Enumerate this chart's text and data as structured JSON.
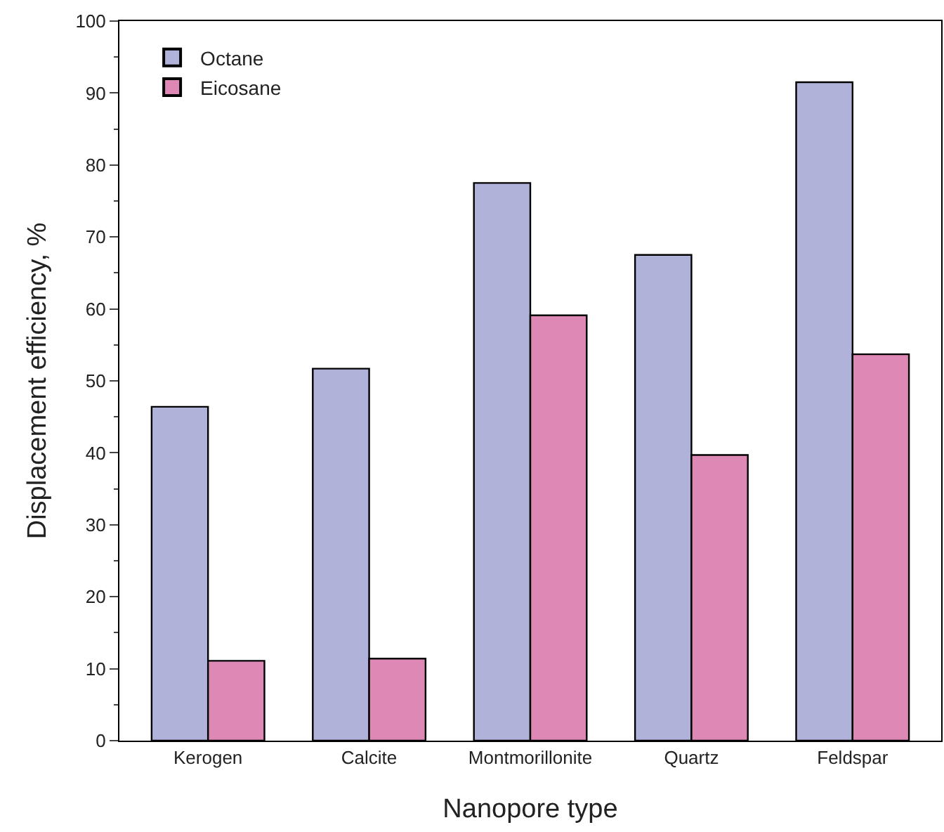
{
  "chart_data": {
    "type": "bar",
    "xlabel": "Nanopore type",
    "ylabel": "Displacement efficiency, %",
    "categories": [
      "Kerogen",
      "Calcite",
      "Montmorillonite",
      "Quartz",
      "Feldspar"
    ],
    "series": [
      {
        "name": "Octane",
        "color": "#b0b2da",
        "values": [
          46.4,
          51.7,
          77.5,
          67.5,
          91.5
        ]
      },
      {
        "name": "Eicosane",
        "color": "#de89b5",
        "values": [
          11.1,
          11.4,
          59.1,
          39.7,
          53.7
        ]
      }
    ],
    "ylim": [
      0,
      100
    ],
    "yticks": [
      0,
      10,
      20,
      30,
      40,
      50,
      60,
      70,
      80,
      90,
      100
    ],
    "legend": "top left"
  }
}
